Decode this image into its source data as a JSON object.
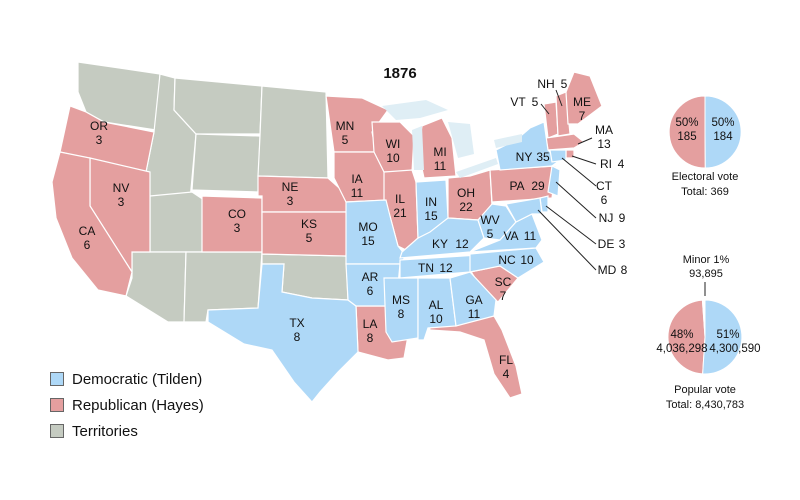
{
  "title": "1876",
  "colors": {
    "democratic": "#aed8f7",
    "republican": "#e49f9f",
    "territories": "#c5cbc1",
    "border": "#ffffff",
    "lake": "#dfeef5"
  },
  "legend": [
    {
      "label": "Democratic (Tilden)",
      "color": "#aed8f7"
    },
    {
      "label": "Republican (Hayes)",
      "color": "#e49f9f"
    },
    {
      "label": "Territories",
      "color": "#c5cbc1"
    }
  ],
  "states": [
    {
      "abbr": "OR",
      "votes": "3",
      "party": "republican"
    },
    {
      "abbr": "NV",
      "votes": "3",
      "party": "republican"
    },
    {
      "abbr": "CA",
      "votes": "6",
      "party": "republican"
    },
    {
      "abbr": "CO",
      "votes": "3",
      "party": "republican"
    },
    {
      "abbr": "NE",
      "votes": "3",
      "party": "republican"
    },
    {
      "abbr": "KS",
      "votes": "5",
      "party": "republican"
    },
    {
      "abbr": "MN",
      "votes": "5",
      "party": "republican"
    },
    {
      "abbr": "IA",
      "votes": "11",
      "party": "republican"
    },
    {
      "abbr": "WI",
      "votes": "10",
      "party": "republican"
    },
    {
      "abbr": "IL",
      "votes": "21",
      "party": "republican"
    },
    {
      "abbr": "MI",
      "votes": "11",
      "party": "republican"
    },
    {
      "abbr": "OH",
      "votes": "22",
      "party": "republican"
    },
    {
      "abbr": "PA",
      "votes": "29",
      "party": "republican"
    },
    {
      "abbr": "VT",
      "votes": "5",
      "party": "republican"
    },
    {
      "abbr": "NH",
      "votes": "5",
      "party": "republican"
    },
    {
      "abbr": "ME",
      "votes": "7",
      "party": "republican"
    },
    {
      "abbr": "MA",
      "votes": "13",
      "party": "republican"
    },
    {
      "abbr": "RI",
      "votes": "4",
      "party": "republican"
    },
    {
      "abbr": "SC",
      "votes": "7",
      "party": "republican"
    },
    {
      "abbr": "LA",
      "votes": "8",
      "party": "republican"
    },
    {
      "abbr": "FL",
      "votes": "4",
      "party": "republican"
    },
    {
      "abbr": "TX",
      "votes": "8",
      "party": "democratic"
    },
    {
      "abbr": "MO",
      "votes": "15",
      "party": "democratic"
    },
    {
      "abbr": "AR",
      "votes": "6",
      "party": "democratic"
    },
    {
      "abbr": "MS",
      "votes": "8",
      "party": "democratic"
    },
    {
      "abbr": "AL",
      "votes": "10",
      "party": "democratic"
    },
    {
      "abbr": "GA",
      "votes": "11",
      "party": "democratic"
    },
    {
      "abbr": "TN",
      "votes": "12",
      "party": "democratic"
    },
    {
      "abbr": "KY",
      "votes": "12",
      "party": "democratic"
    },
    {
      "abbr": "IN",
      "votes": "15",
      "party": "democratic"
    },
    {
      "abbr": "WV",
      "votes": "5",
      "party": "democratic"
    },
    {
      "abbr": "VA",
      "votes": "11",
      "party": "democratic"
    },
    {
      "abbr": "NC",
      "votes": "10",
      "party": "democratic"
    },
    {
      "abbr": "NY",
      "votes": "35",
      "party": "democratic"
    },
    {
      "abbr": "CT",
      "votes": "6",
      "party": "democratic"
    },
    {
      "abbr": "NJ",
      "votes": "9",
      "party": "democratic"
    },
    {
      "abbr": "DE",
      "votes": "3",
      "party": "democratic"
    },
    {
      "abbr": "MD",
      "votes": "8",
      "party": "democratic"
    }
  ],
  "electoral_pie": {
    "caption": "Electoral vote",
    "total": "Total: 369",
    "republican": {
      "pct": "50%",
      "value": "185"
    },
    "democratic": {
      "pct": "50%",
      "value": "184"
    }
  },
  "popular_pie": {
    "caption": "Popular vote",
    "total": "Total: 8,430,783",
    "minor": {
      "label": "Minor 1%",
      "value": "93,895"
    },
    "republican": {
      "pct": "48%",
      "value": "4,036,298"
    },
    "democratic": {
      "pct": "51%",
      "value": "4,300,590"
    }
  },
  "chart_data": [
    {
      "type": "pie",
      "title": "Electoral vote",
      "categories": [
        "Republican (Hayes)",
        "Democratic (Tilden)"
      ],
      "values": [
        185,
        184
      ],
      "percents": [
        50,
        50
      ],
      "total": 369
    },
    {
      "type": "pie",
      "title": "Popular vote",
      "categories": [
        "Republican (Hayes)",
        "Democratic (Tilden)",
        "Minor"
      ],
      "values": [
        4036298,
        4300590,
        93895
      ],
      "percents": [
        48,
        51,
        1
      ],
      "total": 8430783
    }
  ]
}
